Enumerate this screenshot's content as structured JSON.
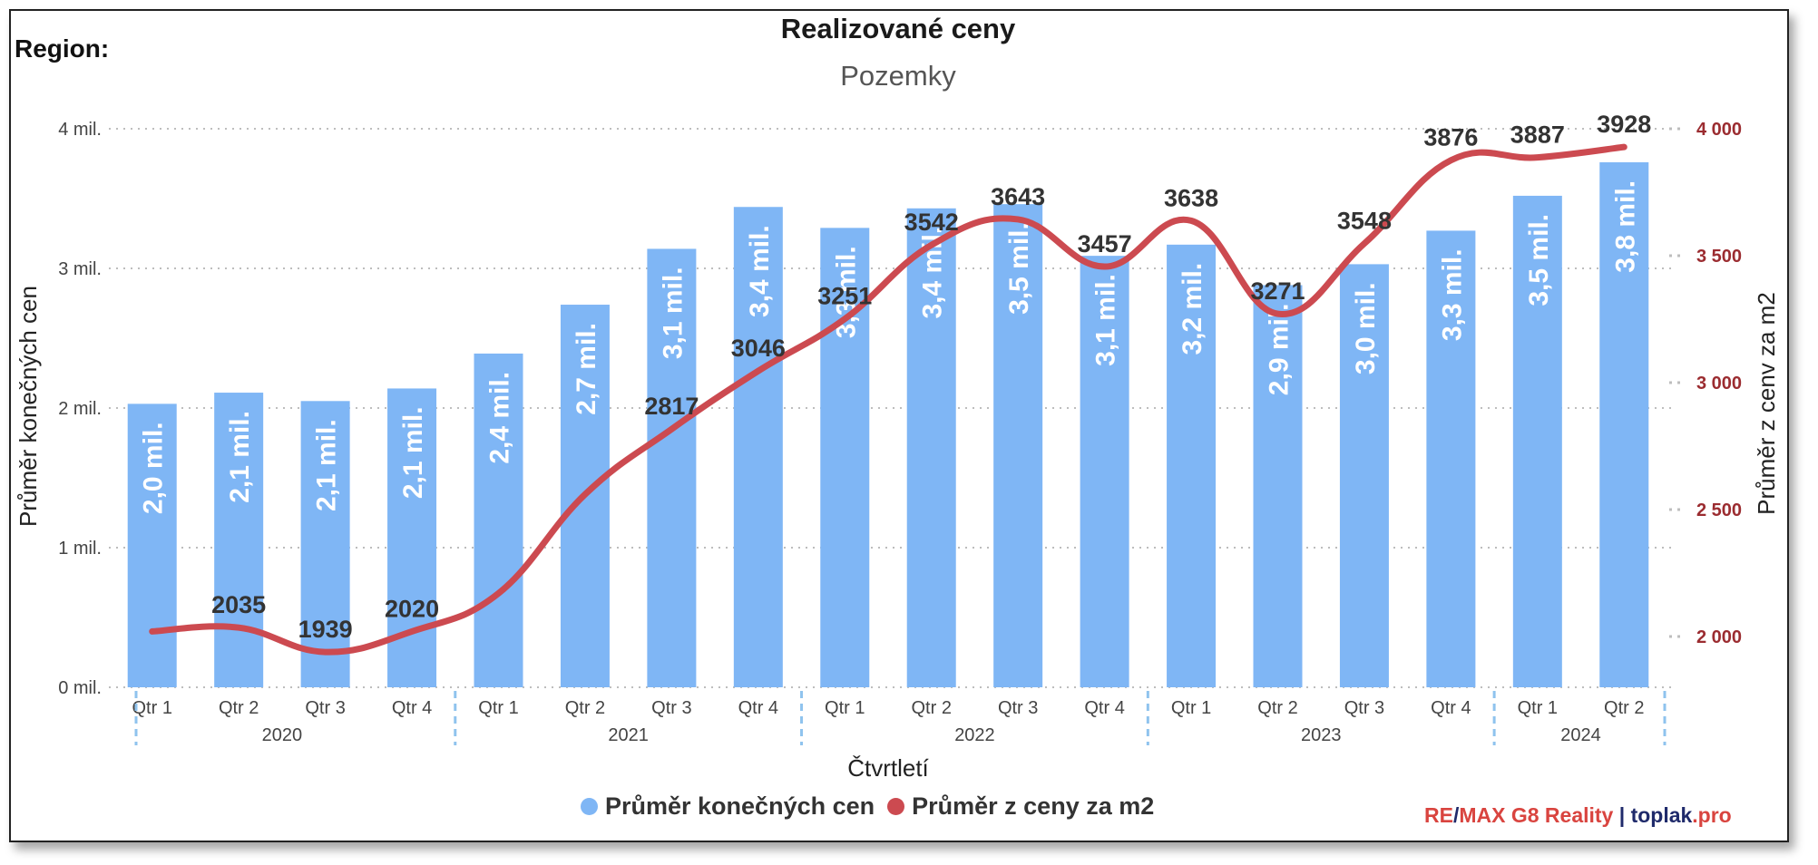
{
  "header": {
    "region_label": "Region:",
    "title": "Realizované ceny",
    "subtitle": "Pozemky"
  },
  "legend": {
    "bar_label": "Průměr konečných cen",
    "line_label": "Průměr z ceny za m2"
  },
  "credit": {
    "part1": "RE",
    "slash": "/",
    "part2": "MAX G8 Reality",
    "separator": "|",
    "part3": "toplak",
    "part4": ".pro"
  },
  "colors": {
    "bar": "#7fb6f5",
    "line": "#cc4a50",
    "right_axis_text": "#9b2c30",
    "grid": "#bdbdbd",
    "year_separator": "#8fc3ee"
  },
  "chart_data": {
    "type": "bar",
    "xlabel": "Čtvrtletí",
    "ylabel_left": "Průměr konečných cen",
    "ylabel_right": "Průměr z cenv za m2",
    "ylim_left": [
      0,
      4000000
    ],
    "ylim_right": [
      1800000,
      4000000
    ],
    "left_ticks": [
      {
        "value": 0,
        "label": "0 mil."
      },
      {
        "value": 1000000,
        "label": "1 mil."
      },
      {
        "value": 2000000,
        "label": "2 mil."
      },
      {
        "value": 3000000,
        "label": "3 mil."
      },
      {
        "value": 4000000,
        "label": "4 mil."
      }
    ],
    "right_ticks": [
      {
        "value": 2000,
        "label": "2 000"
      },
      {
        "value": 2500,
        "label": "2 500"
      },
      {
        "value": 3000,
        "label": "3 000"
      },
      {
        "value": 3500,
        "label": "3 500"
      },
      {
        "value": 4000,
        "label": "4 000"
      }
    ],
    "right_range": [
      1800,
      4000
    ],
    "grid": true,
    "legend_position": "bottom",
    "years": [
      {
        "label": "2020",
        "count": 4
      },
      {
        "label": "2021",
        "count": 4
      },
      {
        "label": "2022",
        "count": 4
      },
      {
        "label": "2023",
        "count": 4
      },
      {
        "label": "2024",
        "count": 2
      }
    ],
    "categories": [
      "Qtr 1",
      "Qtr 2",
      "Qtr 3",
      "Qtr 4",
      "Qtr 1",
      "Qtr 2",
      "Qtr 3",
      "Qtr 4",
      "Qtr 1",
      "Qtr 2",
      "Qtr 3",
      "Qtr 4",
      "Qtr 1",
      "Qtr 2",
      "Qtr 3",
      "Qtr 4",
      "Qtr 1",
      "Qtr 2"
    ],
    "series": [
      {
        "name": "Průměr konečných cen",
        "type": "bar",
        "axis": "left",
        "values": [
          2030000,
          2110000,
          2050000,
          2140000,
          2390000,
          2740000,
          3140000,
          3440000,
          3290000,
          3430000,
          3460000,
          3090000,
          3170000,
          2880000,
          3030000,
          3270000,
          3520000,
          3760000
        ],
        "labels": [
          "2,0 mil.",
          "2,1 mil.",
          "2,1 mil.",
          "2,1 mil.",
          "2,4 mil.",
          "2,7 mil.",
          "3,1 mil.",
          "3,4 mil.",
          "3,3 mil.",
          "3,4 mil.",
          "3,5 mil.",
          "3,1 mil.",
          "3,2 mil.",
          "2,9 mil.",
          "3,0 mil.",
          "3,3 mil.",
          "3,5 mil.",
          "3,8 mil."
        ]
      },
      {
        "name": "Průměr z ceny za m2",
        "type": "line",
        "axis": "right",
        "values": [
          2020,
          2035,
          1939,
          2020,
          2170,
          2560,
          2817,
          3046,
          3251,
          3542,
          3643,
          3457,
          3638,
          3271,
          3548,
          3876,
          3887,
          3928
        ],
        "labels": [
          "",
          "2035",
          "1939",
          "2020",
          "",
          "",
          "2817",
          "3046",
          "3251",
          "3542",
          "3643",
          "3457",
          "3638",
          "3271",
          "3548",
          "3876",
          "3887",
          "3928"
        ]
      }
    ]
  }
}
